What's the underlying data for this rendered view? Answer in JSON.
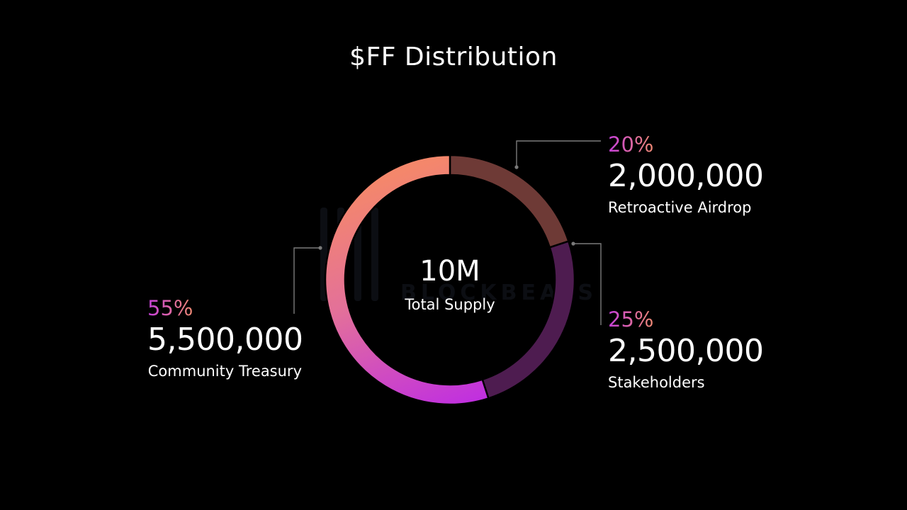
{
  "title": "$FF Distribution",
  "center": {
    "value": "10M",
    "label": "Total Supply"
  },
  "watermark": {
    "wordmark": "BLOCKBEATS"
  },
  "colors": {
    "background": "#000000",
    "airdrop_segment": "#6e3a36",
    "stakeholders_segment": "#4e1c50",
    "treasury_gradient": [
      "#c02fe0",
      "#e87590",
      "#f4876b"
    ],
    "percent_gradient": [
      "#c53fd9",
      "#f08a74"
    ]
  },
  "chart_data": {
    "type": "pie",
    "title": "$FF Distribution",
    "total": 10000000,
    "total_label": "10M",
    "slices": [
      {
        "name": "Retroactive Airdrop",
        "percent": 20,
        "value": 2000000,
        "percent_label": "20%",
        "value_label": "2,000,000"
      },
      {
        "name": "Stakeholders",
        "percent": 25,
        "value": 2500000,
        "percent_label": "25%",
        "value_label": "2,500,000"
      },
      {
        "name": "Community Treasury",
        "percent": 55,
        "value": 5500000,
        "percent_label": "55%",
        "value_label": "5,500,000"
      }
    ]
  }
}
